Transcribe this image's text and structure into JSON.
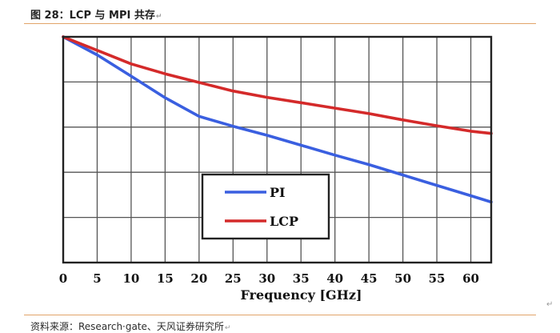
{
  "figure": {
    "caption": "图 28：LCP 与 MPI 共存",
    "return_mark": "↵",
    "source": "资料来源：Research·gate、天风证券研究所"
  },
  "chart_data": {
    "type": "line",
    "title": "",
    "xlabel": "Frequency [GHz]",
    "ylabel": "",
    "xlim": [
      0,
      63
    ],
    "xticks": [
      0,
      5,
      10,
      15,
      20,
      25,
      30,
      35,
      40,
      45,
      50,
      55,
      60
    ],
    "ylim": [
      0,
      5
    ],
    "ygrid_count": 5,
    "grid": true,
    "legend_position": "center",
    "series": [
      {
        "name": "PI",
        "color": "#3a5fe0",
        "x": [
          0,
          5,
          10,
          15,
          20,
          25,
          30,
          35,
          40,
          45,
          50,
          55,
          60,
          63
        ],
        "y": [
          5.0,
          4.6,
          4.13,
          3.65,
          3.24,
          3.02,
          2.82,
          2.6,
          2.38,
          2.17,
          1.94,
          1.71,
          1.48,
          1.34
        ]
      },
      {
        "name": "LCP",
        "color": "#d42a2a",
        "x": [
          0,
          5,
          10,
          15,
          20,
          25,
          30,
          35,
          40,
          45,
          50,
          55,
          60,
          63
        ],
        "y": [
          5.0,
          4.7,
          4.4,
          4.18,
          3.99,
          3.8,
          3.66,
          3.54,
          3.42,
          3.3,
          3.16,
          3.03,
          2.91,
          2.86
        ]
      }
    ]
  }
}
